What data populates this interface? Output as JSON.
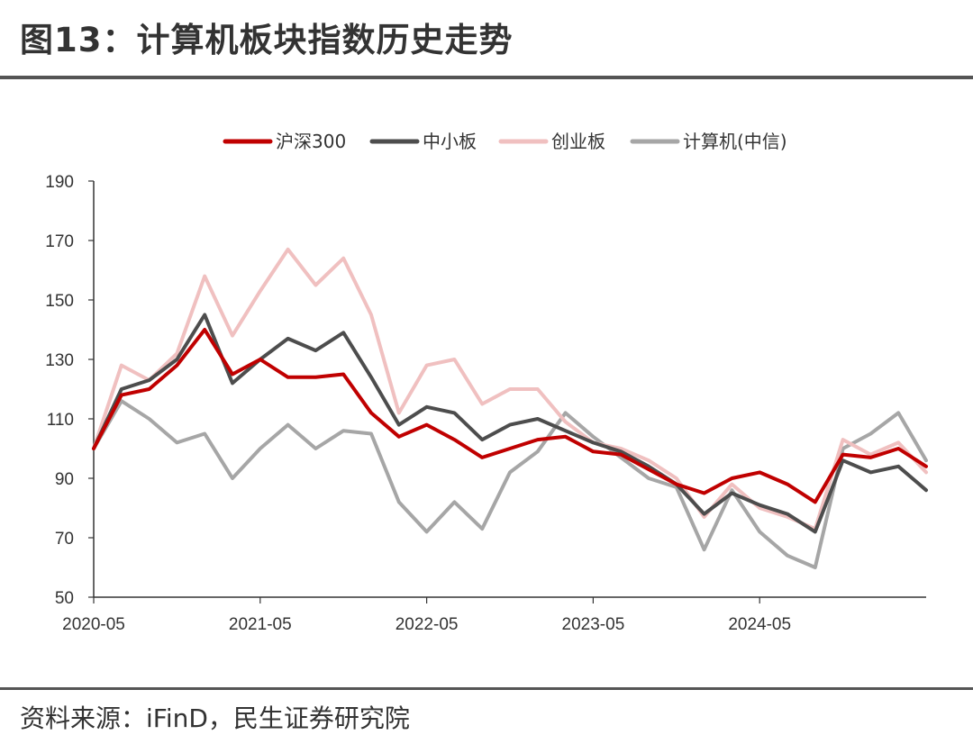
{
  "header": {
    "title": "图13：计算机板块指数历史走势"
  },
  "footer": {
    "source": "资料来源：iFinD，民生证券研究院"
  },
  "chart_data": {
    "type": "line",
    "title": "图13：计算机板块指数历史走势",
    "xlabel": "",
    "ylabel": "",
    "ylim": [
      50,
      190
    ],
    "yticks": [
      50,
      70,
      90,
      110,
      130,
      150,
      170,
      190
    ],
    "xlim": [
      "2020-05",
      "2025-05"
    ],
    "xticks": [
      "2020-05",
      "2021-05",
      "2022-05",
      "2023-05",
      "2024-05"
    ],
    "grid": false,
    "legend_position": "top-center",
    "x": [
      "2020-05",
      "2020-07",
      "2020-09",
      "2020-11",
      "2021-01",
      "2021-03",
      "2021-05",
      "2021-07",
      "2021-09",
      "2021-11",
      "2022-01",
      "2022-03",
      "2022-05",
      "2022-07",
      "2022-09",
      "2022-11",
      "2023-01",
      "2023-03",
      "2023-05",
      "2023-07",
      "2023-09",
      "2023-11",
      "2024-01",
      "2024-03",
      "2024-05",
      "2024-07",
      "2024-09",
      "2024-11",
      "2025-01",
      "2025-03",
      "2025-05"
    ],
    "series": [
      {
        "name": "沪深300",
        "color": "#c00000",
        "values": [
          100,
          118,
          120,
          128,
          140,
          125,
          130,
          124,
          124,
          125,
          112,
          104,
          108,
          103,
          97,
          100,
          103,
          104,
          99,
          98,
          93,
          88,
          85,
          90,
          92,
          88,
          82,
          98,
          97,
          100,
          94
        ]
      },
      {
        "name": "中小板",
        "color": "#4d4d4d",
        "values": [
          100,
          120,
          123,
          130,
          145,
          122,
          130,
          137,
          133,
          139,
          124,
          108,
          114,
          112,
          103,
          108,
          110,
          106,
          102,
          99,
          94,
          88,
          78,
          85,
          81,
          78,
          72,
          96,
          92,
          94,
          86
        ]
      },
      {
        "name": "创业板",
        "color": "#f0c0c0",
        "values": [
          100,
          128,
          123,
          132,
          158,
          138,
          153,
          167,
          155,
          164,
          145,
          112,
          128,
          130,
          115,
          120,
          120,
          109,
          102,
          100,
          96,
          90,
          77,
          88,
          80,
          77,
          73,
          103,
          98,
          102,
          92
        ]
      },
      {
        "name": "计算机(中信)",
        "color": "#a6a6a6",
        "values": [
          100,
          116,
          110,
          102,
          105,
          90,
          100,
          108,
          100,
          106,
          105,
          82,
          72,
          82,
          73,
          92,
          99,
          112,
          104,
          97,
          90,
          87,
          66,
          86,
          72,
          64,
          60,
          100,
          105,
          112,
          96
        ]
      }
    ]
  }
}
